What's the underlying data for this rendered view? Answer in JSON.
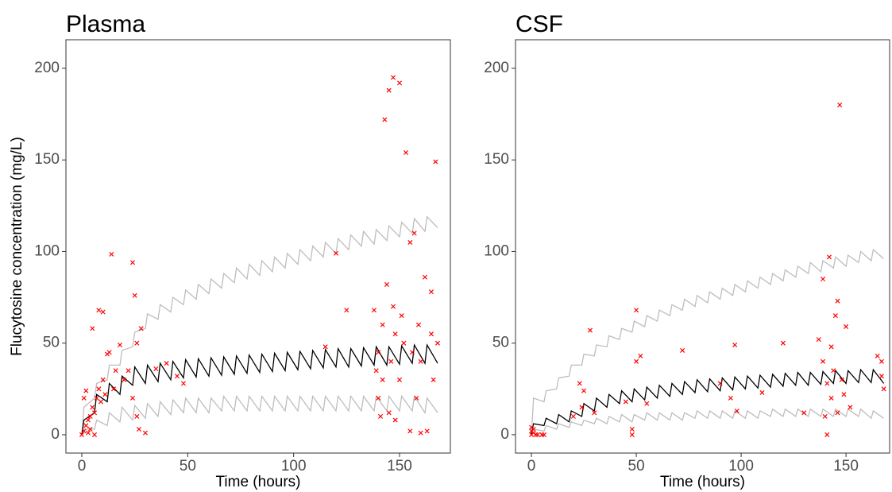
{
  "chart_data": [
    {
      "type": "line",
      "title": "Plasma",
      "xlabel": "Time (hours)",
      "ylabel": "Flucytosine concentration (mg/L)",
      "xlim": [
        -7.5,
        174
      ],
      "ylim": [
        -10,
        215.6
      ],
      "xticks": [
        0,
        50,
        100,
        150
      ],
      "yticks": [
        0,
        50,
        100,
        150,
        200
      ],
      "x": [
        0,
        1,
        6,
        7,
        12,
        13,
        18,
        19,
        24,
        25,
        30,
        31,
        36,
        37,
        42,
        43,
        48,
        49,
        54,
        55,
        60,
        61,
        66,
        67,
        72,
        73,
        78,
        79,
        84,
        85,
        90,
        91,
        96,
        97,
        102,
        103,
        108,
        109,
        114,
        115,
        120,
        121,
        126,
        127,
        132,
        133,
        138,
        139,
        144,
        145,
        150,
        151,
        156,
        157,
        162,
        163,
        168
      ],
      "series": [
        {
          "color": "#bdbdbd",
          "values": [
            0,
            15,
            20,
            28,
            30,
            38,
            38,
            46,
            48,
            56,
            58,
            66,
            63,
            71,
            67,
            75,
            71,
            79,
            74,
            82,
            77,
            85,
            80,
            88,
            83,
            91,
            85,
            93,
            87,
            95,
            89,
            97,
            91,
            99,
            93,
            101,
            95,
            103,
            97,
            105,
            99,
            107,
            101,
            109,
            103,
            111,
            104,
            112,
            106,
            114,
            108,
            116,
            110,
            118,
            111,
            119,
            113
          ]
        },
        {
          "color": "#bdbdbd",
          "values": [
            0,
            3,
            3,
            8,
            5,
            12,
            7,
            15,
            8,
            16,
            9,
            17,
            10,
            18,
            11,
            19,
            12,
            20,
            12,
            20,
            12,
            20,
            13,
            21,
            13,
            21,
            13,
            21,
            13,
            21,
            13,
            21,
            13,
            21,
            13,
            21,
            13,
            21,
            13,
            21,
            13,
            21,
            13,
            21,
            13,
            21,
            13,
            21,
            13,
            21,
            13,
            21,
            13,
            21,
            12,
            20,
            12
          ]
        },
        {
          "color": "#000000",
          "values": [
            0,
            8,
            12,
            22,
            18,
            28,
            22,
            32,
            27,
            37,
            28,
            38,
            29,
            39,
            30,
            40,
            31,
            41,
            31.5,
            41.5,
            32,
            42,
            32.5,
            42.5,
            33,
            43,
            33.5,
            43.5,
            34,
            44,
            34.5,
            44.5,
            35,
            45,
            35.5,
            45.5,
            36,
            46,
            36.5,
            46.5,
            37,
            47,
            37,
            47,
            37.5,
            47.5,
            38,
            48,
            38,
            48,
            38.5,
            48.5,
            39,
            49,
            39,
            49,
            39
          ]
        }
      ],
      "points": {
        "color": "#ff0000",
        "x": [
          0,
          1,
          2,
          3,
          4,
          5,
          6,
          7,
          8,
          9,
          10,
          11,
          12,
          13,
          8,
          10,
          5,
          14,
          15,
          16,
          18,
          2,
          4,
          6,
          1,
          3,
          20,
          22,
          24,
          25,
          26,
          27,
          28,
          30,
          24,
          26,
          35,
          40,
          45,
          48,
          115,
          120,
          125,
          138,
          140,
          142,
          143,
          145,
          147,
          150,
          153,
          155,
          157,
          160,
          162,
          165,
          167,
          140,
          142,
          144,
          145,
          146,
          148,
          150,
          152,
          155,
          158,
          160,
          163,
          165,
          168,
          166,
          148,
          139,
          141,
          147,
          151,
          156,
          159
        ],
        "y": [
          0,
          2,
          5,
          1,
          10,
          15,
          12,
          20,
          25,
          18,
          30,
          22,
          44,
          45,
          68,
          67,
          58,
          98.5,
          25,
          35,
          49,
          24,
          3,
          0,
          20,
          8,
          30,
          35,
          94,
          76,
          50,
          3,
          58,
          1,
          20,
          10,
          36,
          39,
          32,
          28,
          48,
          99,
          68,
          68,
          45,
          30,
          172,
          188,
          195,
          192,
          154,
          105,
          110,
          40,
          86,
          78,
          149,
          20,
          60,
          82,
          12,
          40,
          55,
          30,
          50,
          2,
          20,
          1,
          2,
          55,
          50,
          30,
          8,
          35,
          10,
          70,
          65,
          45,
          60
        ]
      }
    },
    {
      "type": "line",
      "title": "CSF",
      "xlabel": "Time (hours)",
      "xlim": [
        -7.6,
        170.8
      ],
      "ylim": [
        -10,
        215.6
      ],
      "xticks": [
        0,
        50,
        100,
        150
      ],
      "yticks": [
        0,
        50,
        100,
        150,
        200
      ],
      "x": [
        0,
        1,
        6,
        7,
        12,
        13,
        18,
        19,
        24,
        25,
        30,
        31,
        36,
        37,
        42,
        43,
        48,
        49,
        54,
        55,
        60,
        61,
        66,
        67,
        72,
        73,
        78,
        79,
        84,
        85,
        90,
        91,
        96,
        97,
        102,
        103,
        108,
        109,
        114,
        115,
        120,
        121,
        126,
        127,
        132,
        133,
        138,
        139,
        144,
        145,
        150,
        151,
        156,
        157,
        162,
        163,
        168
      ],
      "series": [
        {
          "color": "#bdbdbd",
          "values": [
            0,
            20,
            18,
            24,
            25,
            31,
            32,
            38,
            38,
            44,
            43,
            49,
            48,
            54,
            52,
            58,
            56,
            62,
            59,
            65,
            62,
            68,
            65,
            71,
            68,
            74,
            70,
            76,
            72,
            78,
            74,
            80,
            76,
            82,
            78,
            84,
            80,
            86,
            82,
            88,
            84,
            90,
            86,
            92,
            88,
            94,
            89,
            95,
            91,
            97,
            92,
            98,
            94,
            100,
            95,
            101,
            96
          ]
        },
        {
          "color": "#bdbdbd",
          "values": [
            0,
            3,
            2,
            5,
            3,
            6,
            4,
            7,
            5,
            8,
            6,
            9,
            6,
            10,
            7,
            11,
            7,
            11,
            8,
            12,
            8,
            12,
            8,
            12,
            8,
            12,
            9,
            13,
            9,
            13,
            9,
            13,
            9,
            13,
            9,
            13,
            9,
            13,
            10,
            14,
            10,
            14,
            10,
            14,
            10,
            14,
            10,
            14,
            10,
            14,
            10,
            14,
            10,
            14,
            9,
            13,
            9
          ]
        },
        {
          "color": "#000000",
          "values": [
            0,
            6,
            5,
            9,
            6,
            11,
            7,
            13,
            10,
            17,
            13,
            20,
            15,
            22,
            17,
            24,
            18,
            25,
            19,
            26,
            20,
            27,
            21,
            28,
            22,
            29,
            23,
            30,
            23.5,
            30.5,
            24,
            31,
            24.5,
            31.5,
            25,
            32,
            25.5,
            32.5,
            26,
            33,
            26.5,
            33.5,
            27,
            34,
            27,
            34,
            27.5,
            34.5,
            28,
            35,
            28,
            35,
            28.5,
            35.5,
            28.5,
            35.5,
            28
          ]
        }
      ],
      "points": {
        "color": "#ff0000",
        "x": [
          0,
          0,
          0,
          1,
          2,
          3,
          5,
          6,
          1,
          20,
          23,
          25,
          28,
          24,
          30,
          45,
          48,
          48,
          50,
          50,
          52,
          55,
          72,
          90,
          95,
          97,
          98,
          110,
          120,
          130,
          137,
          139,
          142,
          143,
          140,
          143,
          145,
          146,
          147,
          148,
          150,
          152,
          141,
          144,
          146,
          149,
          165,
          167,
          168,
          167,
          139,
          141
        ],
        "y": [
          0,
          2,
          4,
          1,
          0,
          0,
          0,
          0,
          3,
          10,
          28,
          24,
          57,
          15,
          12,
          18,
          3,
          0,
          68,
          40,
          43,
          17,
          46,
          28,
          20,
          49,
          13,
          23,
          50,
          12,
          52,
          85,
          97,
          20,
          10,
          48,
          65,
          73,
          180,
          30,
          59,
          15,
          0,
          35,
          12,
          22,
          43,
          40,
          25,
          32,
          40,
          28
        ]
      }
    }
  ]
}
